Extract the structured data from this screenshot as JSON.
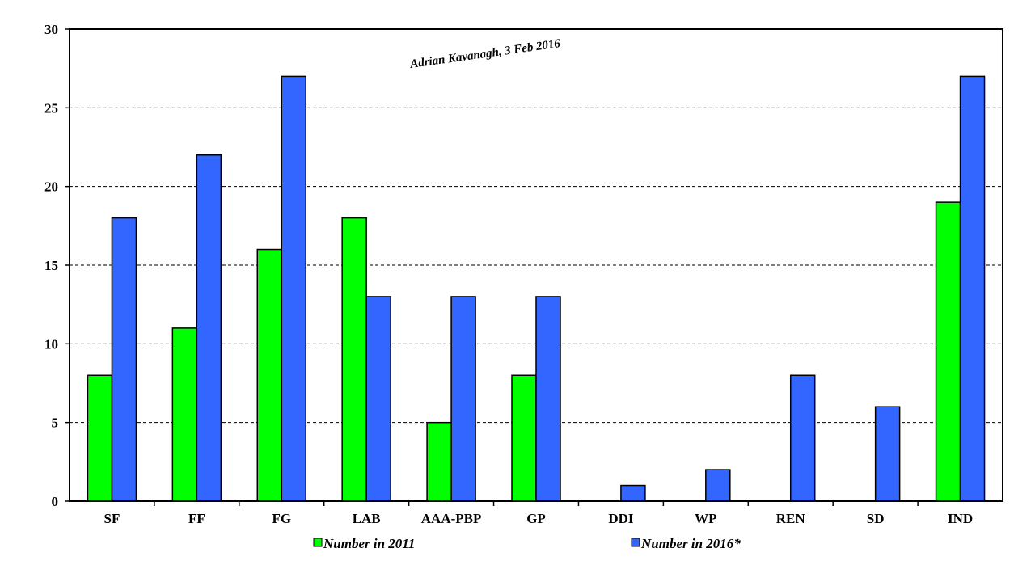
{
  "chart_data": {
    "type": "bar",
    "categories": [
      "SF",
      "FF",
      "FG",
      "LAB",
      "AAA-PBP",
      "GP",
      "DDI",
      "WP",
      "REN",
      "SD",
      "IND"
    ],
    "series": [
      {
        "name": "Number in 2011",
        "color": "#00ff00",
        "values": [
          8,
          11,
          16,
          18,
          5,
          8,
          0,
          0,
          0,
          0,
          19
        ]
      },
      {
        "name": "Number in 2016*",
        "color": "#3366ff",
        "values": [
          18,
          22,
          27,
          13,
          13,
          13,
          1,
          2,
          8,
          6,
          27
        ]
      }
    ],
    "ylim": [
      0,
      30
    ],
    "yticks": [
      "0",
      "5",
      "10",
      "15",
      "20",
      "25",
      "30"
    ],
    "grid": true,
    "legend_position": "bottom",
    "annotation": "Adrian Kavanagh, 3 Feb 2016",
    "title": "",
    "xlabel": "",
    "ylabel": ""
  }
}
